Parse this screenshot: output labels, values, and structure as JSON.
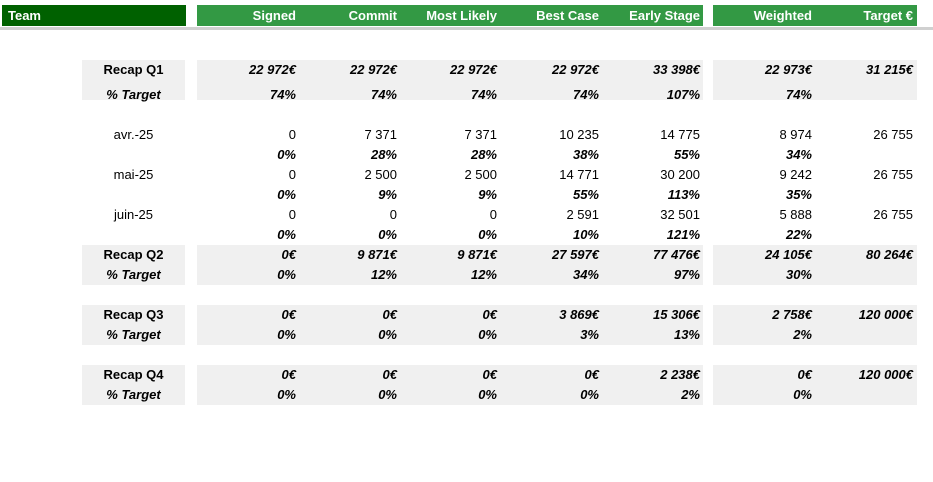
{
  "header": {
    "team": "Team",
    "columns": [
      "Signed",
      "Commit",
      "Most Likely",
      "Best Case",
      "Early Stage",
      "Weighted",
      "Target €"
    ]
  },
  "rows": [
    {
      "label": "Recap Q1",
      "kind": "recap",
      "values": [
        "22 972€",
        "22 972€",
        "22 972€",
        "22 972€",
        "33 398€",
        "22 973€",
        "31 215€"
      ]
    },
    {
      "label": "% Target",
      "kind": "recap-pct",
      "values": [
        "74%",
        "74%",
        "74%",
        "74%",
        "107%",
        "74%",
        ""
      ]
    },
    {
      "label": "avr.-25",
      "kind": "month",
      "values": [
        "0",
        "7 371",
        "7 371",
        "10 235",
        "14 775",
        "8 974",
        "26 755"
      ]
    },
    {
      "label": "",
      "kind": "month-pct",
      "values": [
        "0%",
        "28%",
        "28%",
        "38%",
        "55%",
        "34%",
        ""
      ]
    },
    {
      "label": "mai-25",
      "kind": "month",
      "values": [
        "0",
        "2 500",
        "2 500",
        "14 771",
        "30 200",
        "9 242",
        "26 755"
      ]
    },
    {
      "label": "",
      "kind": "month-pct",
      "values": [
        "0%",
        "9%",
        "9%",
        "55%",
        "113%",
        "35%",
        ""
      ]
    },
    {
      "label": "juin-25",
      "kind": "month",
      "values": [
        "0",
        "0",
        "0",
        "2 591",
        "32 501",
        "5 888",
        "26 755"
      ]
    },
    {
      "label": "",
      "kind": "month-pct",
      "values": [
        "0%",
        "0%",
        "0%",
        "10%",
        "121%",
        "22%",
        ""
      ]
    },
    {
      "label": "Recap Q2",
      "kind": "recap",
      "values": [
        "0€",
        "9 871€",
        "9 871€",
        "27 597€",
        "77 476€",
        "24 105€",
        "80 264€"
      ]
    },
    {
      "label": "% Target",
      "kind": "recap-pct",
      "values": [
        "0%",
        "12%",
        "12%",
        "34%",
        "97%",
        "30%",
        ""
      ]
    },
    {
      "label": "Recap Q3",
      "kind": "recap",
      "values": [
        "0€",
        "0€",
        "0€",
        "3 869€",
        "15 306€",
        "2 758€",
        "120 000€"
      ]
    },
    {
      "label": "% Target",
      "kind": "recap-pct",
      "values": [
        "0%",
        "0%",
        "0%",
        "3%",
        "13%",
        "2%",
        ""
      ]
    },
    {
      "label": "Recap Q4",
      "kind": "recap",
      "values": [
        "0€",
        "0€",
        "0€",
        "0€",
        "2 238€",
        "0€",
        "120 000€"
      ]
    },
    {
      "label": "% Target",
      "kind": "recap-pct",
      "values": [
        "0%",
        "0%",
        "0%",
        "0%",
        "2%",
        "0%",
        ""
      ]
    }
  ]
}
